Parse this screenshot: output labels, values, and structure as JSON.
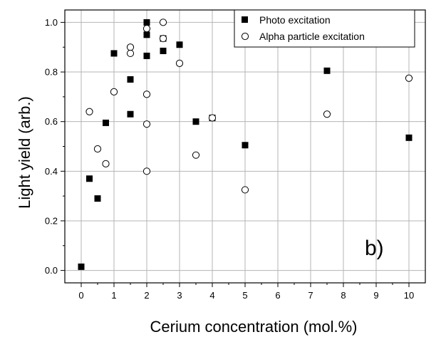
{
  "chart_data": {
    "type": "scatter",
    "title": "",
    "xlabel": "Cerium concentration (mol.%)",
    "ylabel": "Light yield (arb.)",
    "xlim": [
      -0.5,
      10.5
    ],
    "ylim": [
      -0.05,
      1.05
    ],
    "x_ticks": [
      0,
      0.5,
      1,
      1.5,
      2,
      2.5,
      3,
      3.5,
      4,
      4.5,
      5,
      5.5,
      6,
      6.5,
      7,
      7.5,
      8,
      8.5,
      9,
      9.5,
      10
    ],
    "x_tick_labels": [
      "0",
      "1",
      "2",
      "3",
      "4",
      "5",
      "6",
      "7",
      "8",
      "9",
      "10"
    ],
    "y_tick_labels": [
      "0.0",
      "0.2",
      "0.4",
      "0.6",
      "0.8",
      "1.0"
    ],
    "grid": true,
    "legend_position": "top-right",
    "annotation": "b)",
    "series": [
      {
        "name": "Photo excitation",
        "marker": "filled-square",
        "color": "#000000",
        "points": [
          [
            0,
            0.015
          ],
          [
            0.25,
            0.37
          ],
          [
            0.5,
            0.29
          ],
          [
            0.75,
            0.595
          ],
          [
            1,
            0.875
          ],
          [
            1.5,
            0.77
          ],
          [
            1.5,
            0.63
          ],
          [
            2,
            1.0
          ],
          [
            2,
            0.95
          ],
          [
            2,
            0.865
          ],
          [
            2.5,
            0.935
          ],
          [
            2.5,
            0.885
          ],
          [
            3,
            0.91
          ],
          [
            3.5,
            0.6
          ],
          [
            4,
            0.615
          ],
          [
            5,
            0.505
          ],
          [
            7.5,
            0.805
          ],
          [
            10,
            0.535
          ]
        ]
      },
      {
        "name": "Alpha particle excitation",
        "marker": "open-circle",
        "color": "#000000",
        "points": [
          [
            0.25,
            0.64
          ],
          [
            0.5,
            0.49
          ],
          [
            0.75,
            0.43
          ],
          [
            1,
            0.72
          ],
          [
            1.5,
            0.9
          ],
          [
            1.5,
            0.875
          ],
          [
            2,
            0.975
          ],
          [
            2,
            0.71
          ],
          [
            2,
            0.59
          ],
          [
            2,
            0.4
          ],
          [
            2.5,
            1.0
          ],
          [
            2.5,
            0.935
          ],
          [
            3,
            0.835
          ],
          [
            3.5,
            0.465
          ],
          [
            4,
            0.615
          ],
          [
            5,
            0.325
          ],
          [
            7.5,
            0.63
          ],
          [
            10,
            0.775
          ]
        ]
      }
    ]
  }
}
